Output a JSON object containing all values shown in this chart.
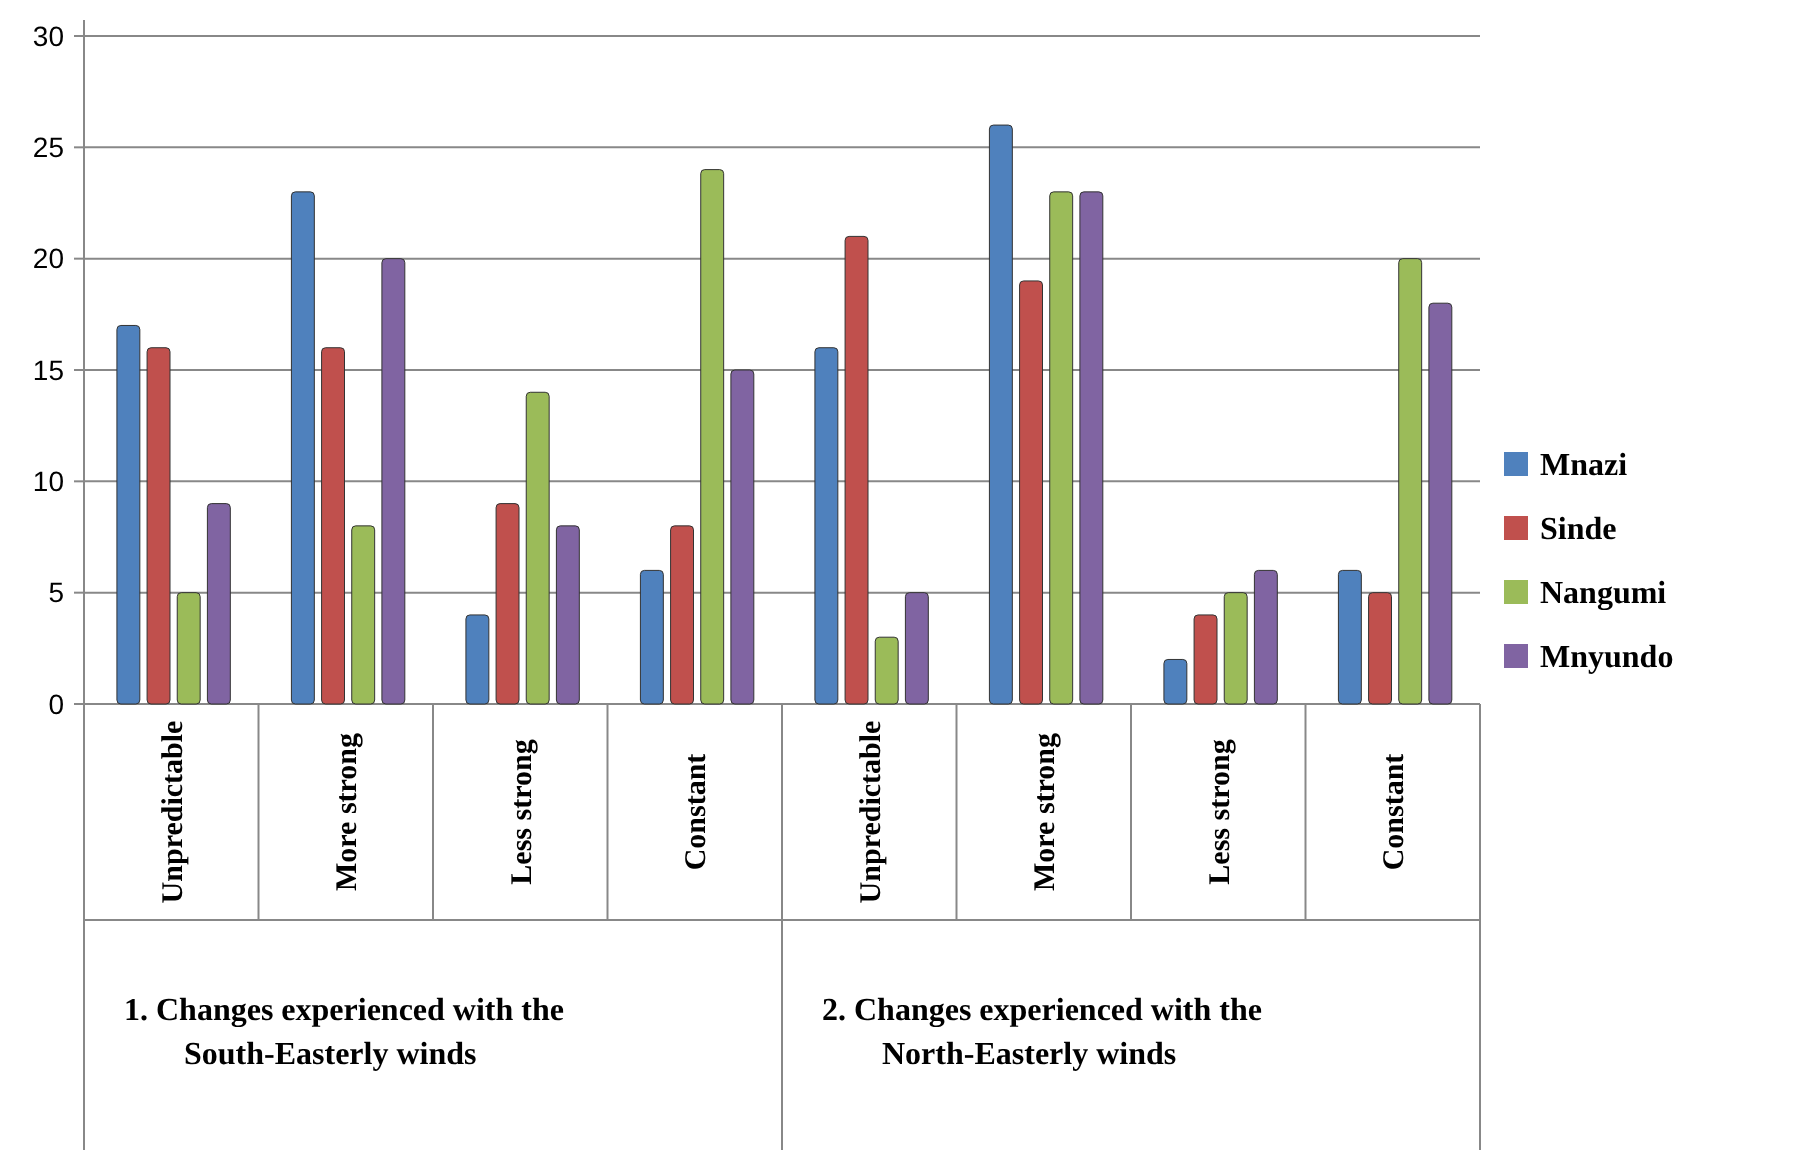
{
  "chart_data": {
    "type": "bar",
    "categories": [
      "Unpredictable",
      "More strong",
      "Less strong",
      "Constant",
      "Unpredictable",
      "More strong",
      "Less strong",
      "Constant"
    ],
    "series": [
      {
        "name": "Mnazi",
        "color": "#4f81bd",
        "values": [
          17,
          23,
          4,
          6,
          16,
          26,
          2,
          6
        ]
      },
      {
        "name": "Sinde",
        "color": "#c0504d",
        "values": [
          16,
          16,
          9,
          8,
          21,
          19,
          4,
          5
        ]
      },
      {
        "name": "Nangumi",
        "color": "#9bbb59",
        "values": [
          5,
          8,
          14,
          24,
          3,
          23,
          5,
          20
        ]
      },
      {
        "name": "Mnyundo",
        "color": "#8064a2",
        "values": [
          9,
          20,
          8,
          15,
          5,
          23,
          6,
          18
        ]
      }
    ],
    "ylim": [
      0,
      30
    ],
    "yticks": [
      0,
      5,
      10,
      15,
      20,
      25,
      30
    ],
    "grid": "y",
    "legend": "right",
    "annotations": [
      "1.      Changes experienced with the South-Easterly winds",
      "2.      Changes experienced with the North-Easterly winds"
    ]
  }
}
